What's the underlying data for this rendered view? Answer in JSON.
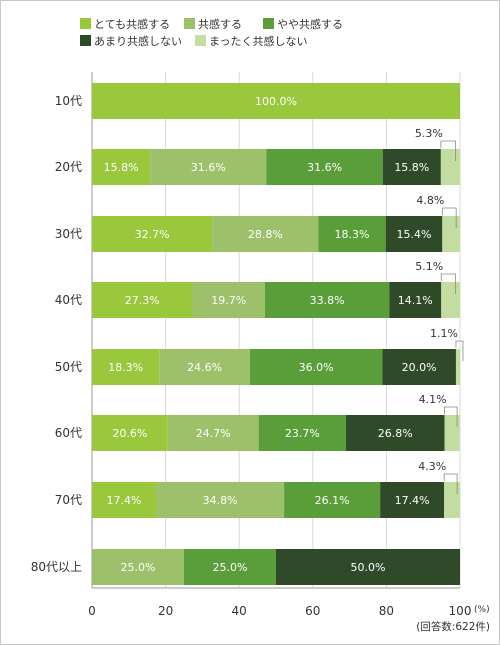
{
  "chart_data": {
    "type": "bar",
    "orientation": "horizontal",
    "stacked": true,
    "categories": [
      "10代",
      "20代",
      "30代",
      "40代",
      "50代",
      "60代",
      "70代",
      "80代以上"
    ],
    "series": [
      {
        "name": "とても共感する",
        "color": "#99c83c",
        "values": [
          100.0,
          15.8,
          32.7,
          27.3,
          18.3,
          20.6,
          17.4,
          0
        ]
      },
      {
        "name": "共感する",
        "color": "#9dc16a",
        "values": [
          0,
          31.6,
          28.8,
          19.7,
          24.6,
          24.7,
          34.8,
          25.0
        ]
      },
      {
        "name": "やや共感する",
        "color": "#5a9e3a",
        "values": [
          0,
          31.6,
          18.3,
          33.8,
          36.0,
          23.7,
          26.1,
          25.0
        ]
      },
      {
        "name": "あまり共感しない",
        "color": "#2e4a28",
        "values": [
          0,
          15.8,
          15.4,
          14.1,
          20.0,
          26.8,
          17.4,
          50.0
        ]
      },
      {
        "name": "まったく共感しない",
        "color": "#c3dc9f",
        "values": [
          0,
          5.3,
          4.8,
          5.1,
          1.1,
          4.1,
          4.3,
          0
        ]
      }
    ],
    "xlim": [
      0,
      100
    ],
    "xticks": [
      "0",
      "20",
      "40",
      "60",
      "80",
      "100"
    ],
    "unit_label": "(%)",
    "note": "(回答数:622件)",
    "value_suffix": "%",
    "grid": true,
    "legend_position": "top"
  }
}
